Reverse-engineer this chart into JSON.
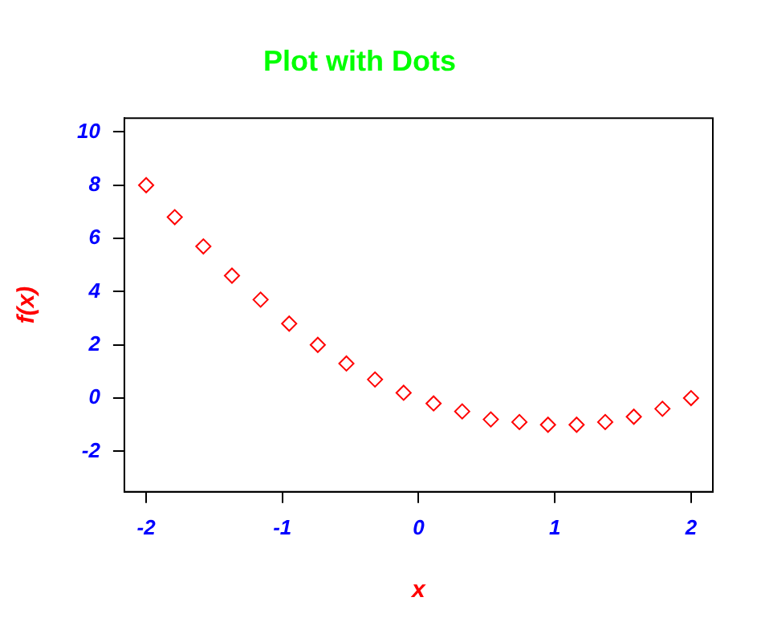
{
  "chart_data": {
    "type": "scatter",
    "title": "Plot with Dots",
    "xlabel": "x",
    "ylabel": "f(x)",
    "x": [
      -2,
      -1.79,
      -1.58,
      -1.37,
      -1.16,
      -0.95,
      -0.74,
      -0.53,
      -0.32,
      -0.11,
      0.11,
      0.32,
      0.53,
      0.74,
      0.95,
      1.16,
      1.37,
      1.58,
      1.79,
      2
    ],
    "series": [
      {
        "color": "#ff0000",
        "values": [
          8,
          6.8,
          5.7,
          4.6,
          3.7,
          2.8,
          2.0,
          1.3,
          0.7,
          0.2,
          -0.2,
          -0.5,
          -0.8,
          -0.9,
          -1.0,
          -1.0,
          -0.9,
          -0.7,
          -0.4,
          0
        ]
      }
    ],
    "xlim": [
      -2.16,
      2.16
    ],
    "xticks": [
      -2,
      -1,
      0,
      1,
      2
    ],
    "ylim": [
      -3.52,
      10.52
    ],
    "yticks": [
      -2,
      0,
      2,
      4,
      6,
      8,
      10
    ],
    "marker": "diamond",
    "grid": false,
    "legend": false
  }
}
